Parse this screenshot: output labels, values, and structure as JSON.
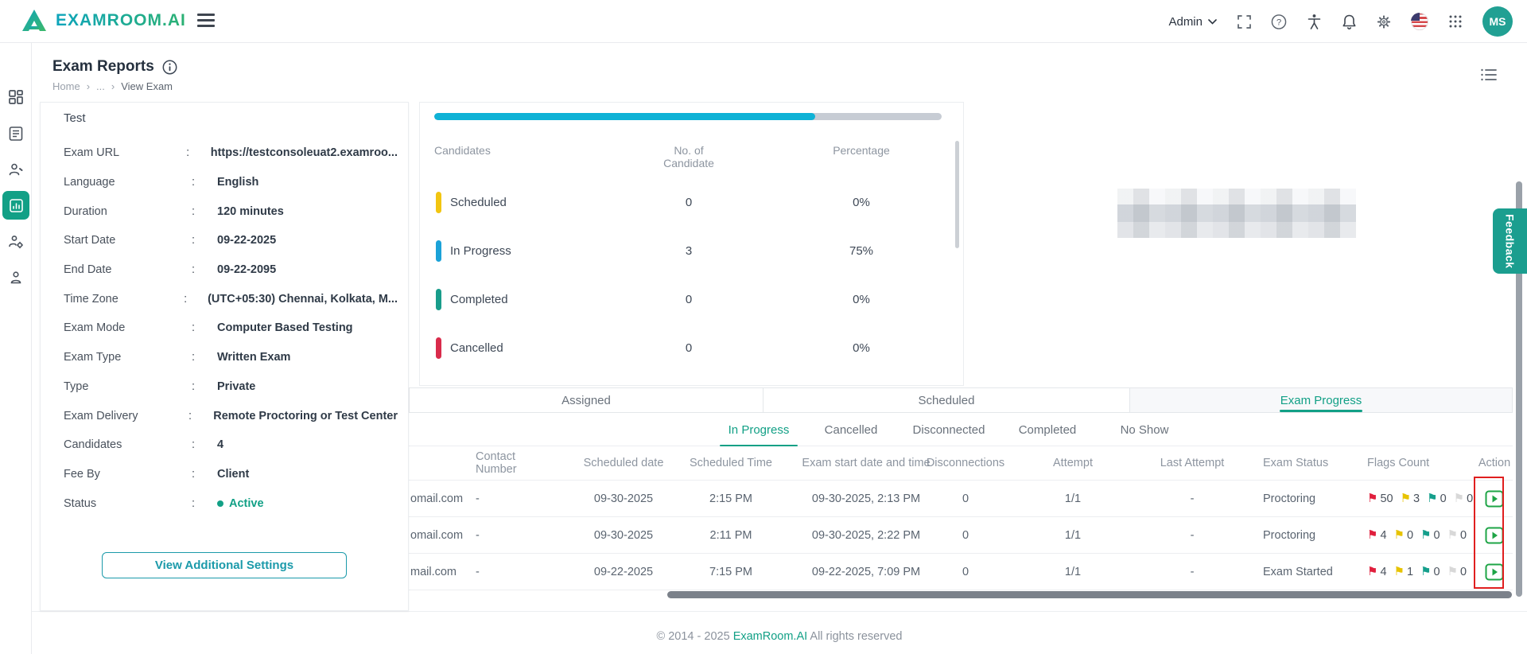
{
  "header": {
    "brand": "EXAMROOM.AI",
    "admin_label": "Admin",
    "avatar_initials": "MS"
  },
  "page": {
    "title": "Exam Reports",
    "breadcrumb": {
      "home": "Home",
      "ellipsis": "...",
      "current": "View Exam"
    }
  },
  "exam_details": {
    "section_title": "Test",
    "fields": [
      {
        "label": "Exam URL",
        "value": "https://testconsoleuat2.examroo..."
      },
      {
        "label": "Language",
        "value": "English"
      },
      {
        "label": "Duration",
        "value": "120 minutes"
      },
      {
        "label": "Start Date",
        "value": "09-22-2025"
      },
      {
        "label": "End Date",
        "value": "09-22-2095"
      },
      {
        "label": "Time Zone",
        "value": "(UTC+05:30) Chennai, Kolkata, M..."
      },
      {
        "label": "Exam Mode",
        "value": "Computer Based Testing"
      },
      {
        "label": "Exam Type",
        "value": "Written Exam"
      },
      {
        "label": "Type",
        "value": "Private"
      },
      {
        "label": "Exam Delivery",
        "value": "Remote Proctoring or Test Center"
      },
      {
        "label": "Candidates",
        "value": "4"
      },
      {
        "label": "Fee By",
        "value": "Client"
      }
    ],
    "colon": ":",
    "status_label": "Status",
    "status_value": "Active",
    "button_label": "View Additional Settings"
  },
  "stats": {
    "progress_percent": 75,
    "columns": [
      "Candidates",
      "No. of Candidate",
      "Percentage"
    ],
    "rows": [
      {
        "label": "Scheduled",
        "count": "0",
        "percent": "0%",
        "color": "#f2c511"
      },
      {
        "label": "In Progress",
        "count": "3",
        "percent": "75%",
        "color": "#1ba2d8"
      },
      {
        "label": "Completed",
        "count": "0",
        "percent": "0%",
        "color": "#199d8b"
      },
      {
        "label": "Cancelled",
        "count": "0",
        "percent": "0%",
        "color": "#d92b4b"
      }
    ]
  },
  "tabs": [
    {
      "label": "Assigned",
      "active": false
    },
    {
      "label": "Scheduled",
      "active": false
    },
    {
      "label": "Exam Progress",
      "active": true
    }
  ],
  "subtabs": [
    {
      "label": "In Progress",
      "active": true
    },
    {
      "label": "Cancelled",
      "active": false
    },
    {
      "label": "Disconnected",
      "active": false
    },
    {
      "label": "Completed",
      "active": false
    },
    {
      "label": "No Show",
      "active": false
    }
  ],
  "table": {
    "columns": [
      "Contact Number",
      "Scheduled date",
      "Scheduled Time",
      "Exam start date and time",
      "Disconnections",
      "Attempt",
      "Last Attempt",
      "Exam Status",
      "Flags Count",
      "Action"
    ],
    "rows": [
      {
        "email": "omail.com",
        "contact": "-",
        "scheduled_date": "09-30-2025",
        "scheduled_time": "2:15 PM",
        "start": "09-30-2025, 2:13 PM",
        "disconnections": "0",
        "attempt": "1/1",
        "last_attempt": "-",
        "status": "Proctoring",
        "flags": {
          "red": "50",
          "yellow": "3",
          "green": "0",
          "gray": "0"
        }
      },
      {
        "email": "omail.com",
        "contact": "-",
        "scheduled_date": "09-30-2025",
        "scheduled_time": "2:11 PM",
        "start": "09-30-2025, 2:22 PM",
        "disconnections": "0",
        "attempt": "1/1",
        "last_attempt": "-",
        "status": "Proctoring",
        "flags": {
          "red": "4",
          "yellow": "0",
          "green": "0",
          "gray": "0"
        }
      },
      {
        "email": "mail.com",
        "contact": "-",
        "scheduled_date": "09-22-2025",
        "scheduled_time": "7:15 PM",
        "start": "09-22-2025, 7:09 PM",
        "disconnections": "0",
        "attempt": "1/1",
        "last_attempt": "-",
        "status": "Exam Started",
        "flags": {
          "red": "4",
          "yellow": "1",
          "green": "0",
          "gray": "0"
        }
      }
    ]
  },
  "icons": {
    "flag_glyph": "⚑"
  },
  "colors": {
    "accent_teal": "#12a086",
    "flag_red": "#e01f3d",
    "flag_yellow": "#e7c300",
    "flag_green": "#159f8c",
    "flag_gray": "#d8d8d8",
    "action_green": "#1ea446",
    "highlight_red": "#e01f1f",
    "progress_fill": "#0fb2d6"
  },
  "feedback": {
    "label": "Feedback"
  },
  "footer": {
    "prefix": "© 2014 - 2025",
    "link": "ExamRoom.AI",
    "suffix": "All rights reserved"
  }
}
